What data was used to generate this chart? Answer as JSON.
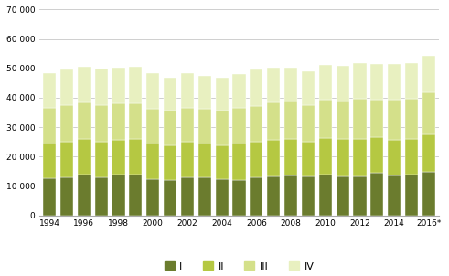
{
  "years": [
    1994,
    1995,
    1996,
    1997,
    1998,
    1999,
    2000,
    2001,
    2002,
    2003,
    2004,
    2005,
    2006,
    2007,
    2008,
    2009,
    2010,
    2011,
    2012,
    2013,
    2014,
    2015,
    2016
  ],
  "Q1": [
    12500,
    13000,
    13800,
    12800,
    13800,
    13900,
    12200,
    12000,
    13000,
    12800,
    12200,
    12000,
    12800,
    13200,
    13700,
    13200,
    14000,
    13200,
    13200,
    14500,
    13500,
    13800,
    14700
  ],
  "Q2": [
    11800,
    12200,
    12300,
    12100,
    12000,
    12100,
    12200,
    11800,
    12000,
    11700,
    11700,
    12300,
    12300,
    12500,
    12200,
    11700,
    12200,
    12700,
    12700,
    12200,
    12200,
    12200,
    12800
  ],
  "Q3": [
    12200,
    12300,
    12400,
    12500,
    12200,
    12200,
    11800,
    11700,
    11700,
    11700,
    11700,
    12200,
    12200,
    12700,
    12700,
    12700,
    13200,
    12700,
    13700,
    12700,
    13700,
    13700,
    14200
  ],
  "Q4": [
    12000,
    12200,
    12200,
    12500,
    12200,
    12200,
    12200,
    11300,
    11700,
    11300,
    11300,
    11700,
    12200,
    11700,
    11700,
    11300,
    11700,
    12200,
    12200,
    12200,
    12200,
    12200,
    12700
  ],
  "colors": [
    "#6b7c2e",
    "#b5c842",
    "#d4e08a",
    "#e8f0c0"
  ],
  "ylim": [
    0,
    70000
  ],
  "yticks": [
    0,
    10000,
    20000,
    30000,
    40000,
    50000,
    60000,
    70000
  ],
  "ytick_labels": [
    "0",
    "10 000",
    "20 000",
    "30 000",
    "40 000",
    "50 000",
    "60 000",
    "70 000"
  ],
  "xtick_years": [
    1994,
    1996,
    1998,
    2000,
    2002,
    2004,
    2006,
    2008,
    2010,
    2012,
    2014,
    2016
  ],
  "xtick_labels": [
    "1994",
    "1996",
    "1998",
    "2000",
    "2002",
    "2004",
    "2006",
    "2008",
    "2010",
    "2012",
    "2014",
    "2016*"
  ],
  "legend_labels": [
    "I",
    "II",
    "III",
    "IV"
  ],
  "background_color": "#ffffff",
  "grid_color": "#c8c8c8",
  "bar_color_edge": "white",
  "bar_edge_width": 0.3
}
